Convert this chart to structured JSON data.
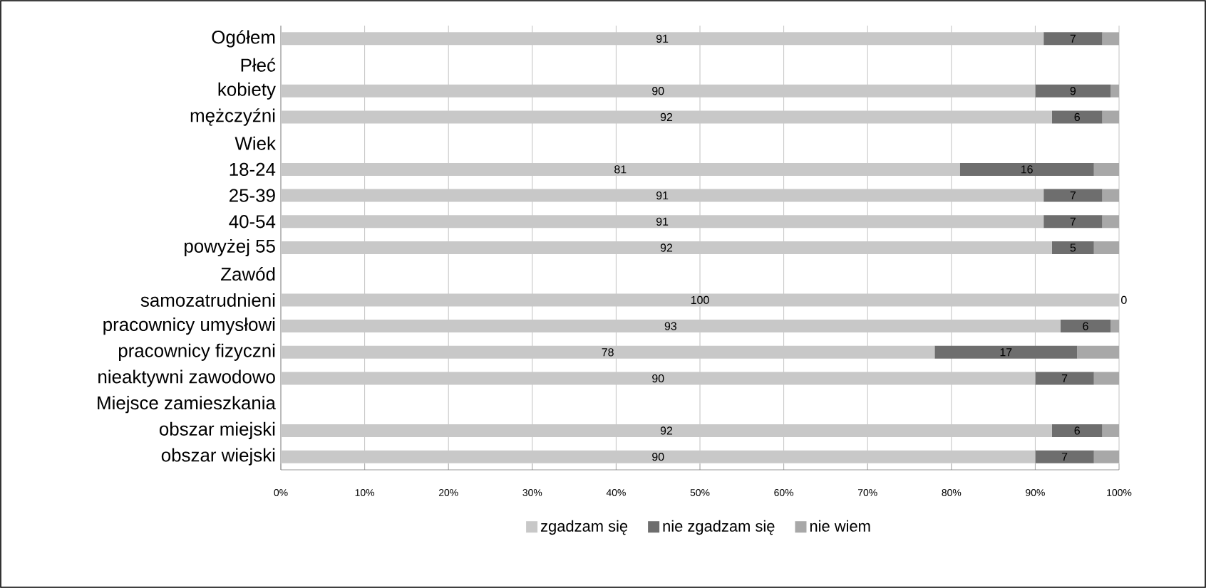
{
  "chart_data": {
    "type": "bar",
    "orientation": "horizontal",
    "stacked": true,
    "categories": [
      "Ogółem",
      "Płeć",
      "kobiety",
      "mężczyźni",
      "Wiek",
      "18-24",
      "25-39",
      "40-54",
      "powyżej 55",
      "Zawód",
      "samozatrudnieni",
      "pracownicy umysłowi",
      "pracownicy fizyczni",
      "nieaktywni zawodowo",
      "Miejsce zamieszkania",
      "obszar miejski",
      "obszar wiejski"
    ],
    "series": [
      {
        "name": "zgadzam się",
        "color": "#c8c8c8",
        "values": [
          91,
          null,
          90,
          92,
          null,
          81,
          91,
          91,
          92,
          null,
          100,
          93,
          78,
          90,
          null,
          92,
          90
        ],
        "value_labels": [
          "91",
          null,
          "90",
          "92",
          null,
          "81",
          "91",
          "91",
          "92",
          null,
          "100",
          "93",
          "78",
          "90",
          null,
          "92",
          "90"
        ]
      },
      {
        "name": "nie zgadzam się",
        "color": "#6e6e6e",
        "values": [
          7,
          null,
          9,
          6,
          null,
          16,
          7,
          7,
          5,
          null,
          0,
          6,
          17,
          7,
          null,
          6,
          7
        ],
        "value_labels": [
          "7",
          null,
          "9",
          "6",
          null,
          "16",
          "7",
          "7",
          "5",
          null,
          "0",
          "6",
          "17",
          "7",
          null,
          "6",
          "7"
        ]
      },
      {
        "name": "nie wiem",
        "color": "#a8a8a8",
        "values": [
          2,
          null,
          1,
          2,
          null,
          3,
          2,
          2,
          3,
          null,
          0,
          1,
          5,
          3,
          null,
          2,
          3
        ]
      }
    ],
    "xlim": [
      0,
      100
    ],
    "xticks": [
      {
        "value": 0,
        "label": "0%"
      },
      {
        "value": 10,
        "label": "10%"
      },
      {
        "value": 20,
        "label": "20%"
      },
      {
        "value": 30,
        "label": "30%"
      },
      {
        "value": 40,
        "label": "40%"
      },
      {
        "value": 50,
        "label": "50%"
      },
      {
        "value": 60,
        "label": "60%"
      },
      {
        "value": 70,
        "label": "70%"
      },
      {
        "value": 80,
        "label": "80%"
      },
      {
        "value": 90,
        "label": "90%"
      },
      {
        "value": 100,
        "label": "100%"
      }
    ],
    "grid": "x",
    "legend": "bottom"
  }
}
